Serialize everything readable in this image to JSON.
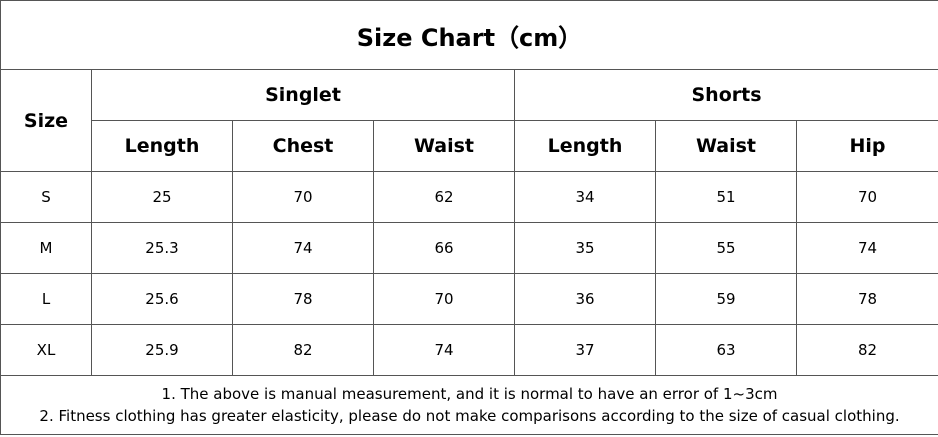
{
  "title": "Size Chart（cm）",
  "table": {
    "size_header": "Size",
    "groups": [
      {
        "label": "Singlet",
        "columns": [
          "Length",
          "Chest",
          "Waist"
        ]
      },
      {
        "label": "Shorts",
        "columns": [
          "Length",
          "Waist",
          "Hip"
        ]
      }
    ],
    "rows": [
      [
        "S",
        25,
        70,
        62,
        34,
        51,
        70
      ],
      [
        "M",
        25.3,
        74,
        66,
        35,
        55,
        74
      ],
      [
        "L",
        25.6,
        78,
        70,
        36,
        59,
        78
      ],
      [
        "XL",
        25.9,
        82,
        74,
        37,
        63,
        82
      ]
    ]
  },
  "notes": [
    "1. The above is manual measurement, and it is normal to have an error of 1~3cm",
    "2. Fitness clothing has greater elasticity, please do not make comparisons according to the size of casual clothing."
  ]
}
